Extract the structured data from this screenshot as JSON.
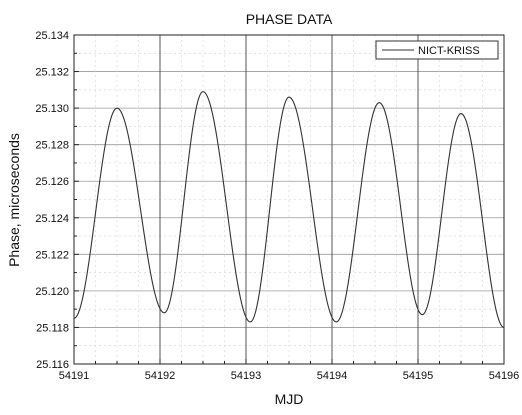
{
  "chart_data": {
    "type": "line",
    "title": "PHASE DATA",
    "xlabel": "MJD",
    "ylabel": "Phase, microseconds",
    "xlim": [
      54191,
      54196
    ],
    "ylim": [
      25.116,
      25.134
    ],
    "x_ticks": [
      "54191",
      "54192",
      "54193",
      "54194",
      "54195",
      "54196"
    ],
    "y_ticks": [
      "25.116",
      "25.118",
      "25.120",
      "25.122",
      "25.124",
      "25.126",
      "25.128",
      "25.130",
      "25.132",
      "25.134"
    ],
    "grid": true,
    "legend_position": "top-right",
    "series": [
      {
        "name": "NICT-KRISS",
        "color": "#333333",
        "x": [
          54191.0,
          54191.5,
          54192.05,
          54192.5,
          54193.05,
          54193.5,
          54194.05,
          54194.55,
          54195.05,
          54195.5,
          54196.0
        ],
        "y": [
          25.1185,
          25.13,
          25.1188,
          25.1309,
          25.1183,
          25.1306,
          25.1183,
          25.1303,
          25.1187,
          25.1297,
          25.118
        ]
      }
    ]
  }
}
